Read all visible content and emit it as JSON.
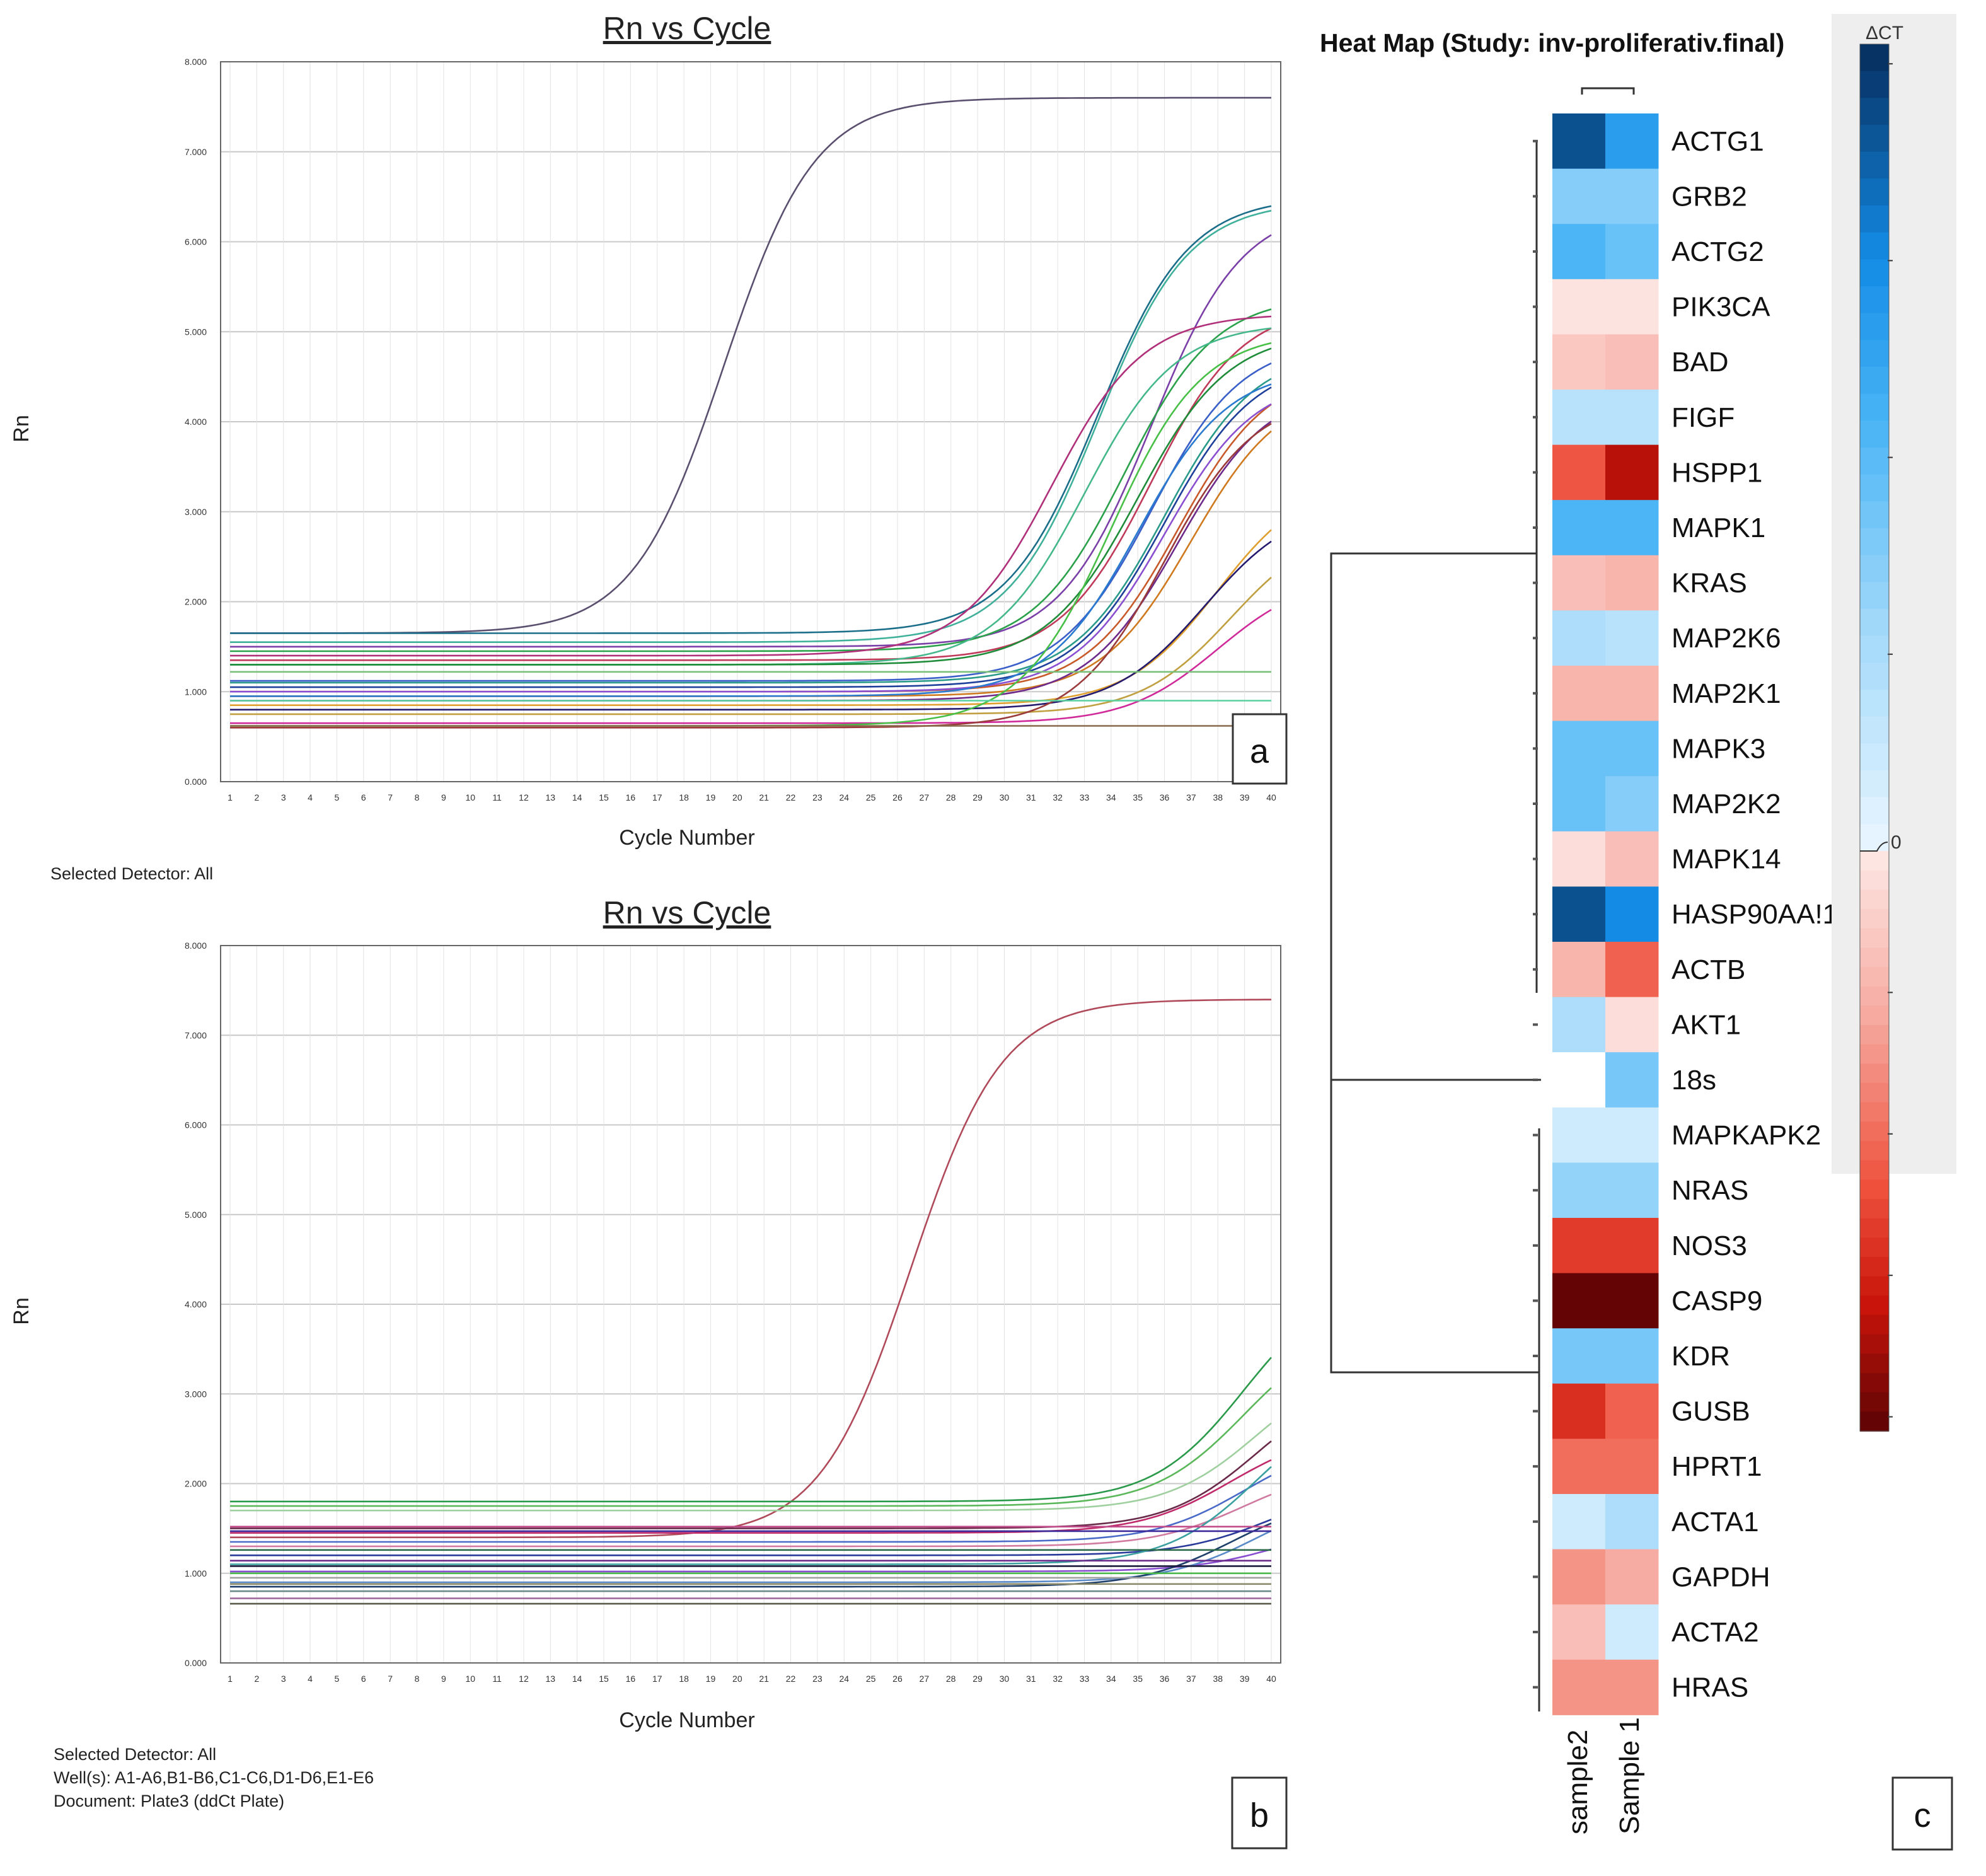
{
  "chart_data": [
    {
      "panel": "a",
      "type": "line",
      "title": "Rn vs Cycle",
      "xlabel": "Cycle Number",
      "ylabel": "Rn",
      "xlim": [
        1,
        40
      ],
      "ylim": [
        0,
        8
      ],
      "x_ticks": [
        "1",
        "2",
        "3",
        "4",
        "5",
        "6",
        "7",
        "8",
        "9",
        "10",
        "11",
        "12",
        "13",
        "14",
        "15",
        "16",
        "17",
        "18",
        "19",
        "20",
        "21",
        "22",
        "23",
        "24",
        "25",
        "26",
        "27",
        "28",
        "29",
        "30",
        "31",
        "32",
        "33",
        "34",
        "35",
        "36",
        "37",
        "38",
        "39",
        "40"
      ],
      "y_ticks": [
        "0.000",
        "1.000",
        "2.000",
        "3.000",
        "4.000",
        "5.000",
        "6.000",
        "7.000",
        "8.000"
      ],
      "grid": true,
      "footer": [
        "Selected Detector: All"
      ],
      "series": [
        {
          "base": 1.65,
          "plateau": 7.6,
          "ct": 19.5,
          "color": "#5a4f6e"
        },
        {
          "base": 1.65,
          "plateau": 6.5,
          "ct": 33.5,
          "color": "#1b6e8a"
        },
        {
          "base": 1.55,
          "plateau": 6.45,
          "ct": 33.5,
          "color": "#3fb09a"
        },
        {
          "base": 1.5,
          "plateau": 6.4,
          "ct": 35.5,
          "color": "#7b3fa8"
        },
        {
          "base": 1.45,
          "plateau": 5.4,
          "ct": 34.5,
          "color": "#2aa14a"
        },
        {
          "base": 1.4,
          "plateau": 5.2,
          "ct": 31.8,
          "color": "#b0307a"
        },
        {
          "base": 1.35,
          "plateau": 5.3,
          "ct": 35.5,
          "color": "#c03a5a"
        },
        {
          "base": 1.3,
          "plateau": 5.1,
          "ct": 33,
          "color": "#44b88a"
        },
        {
          "base": 1.3,
          "plateau": 5.0,
          "ct": 35,
          "color": "#1f8c3a"
        },
        {
          "base": 1.12,
          "plateau": 4.9,
          "ct": 35.5,
          "color": "#3a5fc8"
        },
        {
          "base": 1.1,
          "plateau": 4.8,
          "ct": 36,
          "color": "#2a9a8a"
        },
        {
          "base": 1.05,
          "plateau": 4.7,
          "ct": 36,
          "color": "#1e3f9a"
        },
        {
          "base": 1.0,
          "plateau": 4.6,
          "ct": 36.5,
          "color": "#c85a2a"
        },
        {
          "base": 1.0,
          "plateau": 4.5,
          "ct": 36,
          "color": "#8a4fd0"
        },
        {
          "base": 0.95,
          "plateau": 4.4,
          "ct": 37,
          "color": "#d07a20"
        },
        {
          "base": 0.95,
          "plateau": 4.6,
          "ct": 35,
          "color": "#2a7acf"
        },
        {
          "base": 0.9,
          "plateau": 4.4,
          "ct": 36.5,
          "color": "#6e2a8a"
        },
        {
          "base": 0.85,
          "plateau": 3.4,
          "ct": 38,
          "color": "#e0a030"
        },
        {
          "base": 0.8,
          "plateau": 3.1,
          "ct": 37.5,
          "color": "#241a6e"
        },
        {
          "base": 0.75,
          "plateau": 2.9,
          "ct": 38.5,
          "color": "#c0a040"
        },
        {
          "base": 0.65,
          "plateau": 2.3,
          "ct": 38,
          "color": "#d02a9a"
        },
        {
          "base": 0.62,
          "plateau": 5.0,
          "ct": 34,
          "color": "#48c048"
        },
        {
          "base": 0.6,
          "plateau": 4.3,
          "ct": 36,
          "color": "#9a3a3a"
        },
        {
          "base": 1.22,
          "plateau": 1.22,
          "ct": 60,
          "color": "#7ac07a"
        },
        {
          "base": 0.9,
          "plateau": 0.9,
          "ct": 60,
          "color": "#5ad0a0"
        },
        {
          "base": 0.62,
          "plateau": 0.62,
          "ct": 60,
          "color": "#8a6a4a"
        }
      ]
    },
    {
      "panel": "b",
      "type": "line",
      "title": "Rn vs Cycle",
      "xlabel": "Cycle Number",
      "ylabel": "Rn",
      "xlim": [
        1,
        40
      ],
      "ylim": [
        0,
        8
      ],
      "x_ticks": [
        "1",
        "2",
        "3",
        "4",
        "5",
        "6",
        "7",
        "8",
        "9",
        "10",
        "11",
        "12",
        "13",
        "14",
        "15",
        "16",
        "17",
        "18",
        "19",
        "20",
        "21",
        "22",
        "23",
        "24",
        "25",
        "26",
        "27",
        "28",
        "29",
        "30",
        "31",
        "32",
        "33",
        "34",
        "35",
        "36",
        "37",
        "38",
        "39",
        "40"
      ],
      "y_ticks": [
        "0.000",
        "1.000",
        "2.000",
        "3.000",
        "4.000",
        "5.000",
        "6.000",
        "7.000",
        "8.000"
      ],
      "grid": true,
      "footer": [
        "Selected Detector: All",
        "Well(s): A1-A6,B1-B6,C1-C6,D1-D6,E1-E6",
        "Document: Plate3 (ddCt Plate)"
      ],
      "series": [
        {
          "base": 1.4,
          "plateau": 7.4,
          "ct": 26.5,
          "color": "#b04a5a"
        },
        {
          "base": 1.8,
          "plateau": 4.3,
          "ct": 39,
          "color": "#2a9a4a"
        },
        {
          "base": 1.75,
          "plateau": 3.8,
          "ct": 39,
          "color": "#5ab85a"
        },
        {
          "base": 1.7,
          "plateau": 3.4,
          "ct": 39.5,
          "color": "#a0d0a0"
        },
        {
          "base": 1.5,
          "plateau": 3.2,
          "ct": 39.5,
          "color": "#6a2a4a"
        },
        {
          "base": 1.45,
          "plateau": 2.6,
          "ct": 38.5,
          "color": "#c02a6a"
        },
        {
          "base": 1.35,
          "plateau": 2.5,
          "ct": 39,
          "color": "#4a6ac8"
        },
        {
          "base": 1.3,
          "plateau": 2.2,
          "ct": 39,
          "color": "#d07aa0"
        },
        {
          "base": 1.2,
          "plateau": 2.0,
          "ct": 40,
          "color": "#2a3a9a"
        },
        {
          "base": 1.1,
          "plateau": 3.0,
          "ct": 39.5,
          "color": "#3aa0a0"
        },
        {
          "base": 1.02,
          "plateau": 1.6,
          "ct": 40.5,
          "color": "#8a4fd0"
        },
        {
          "base": 0.9,
          "plateau": 1.9,
          "ct": 39.5,
          "color": "#5a8ac8"
        },
        {
          "base": 0.85,
          "plateau": 1.85,
          "ct": 38.5,
          "color": "#1e3f6a"
        },
        {
          "base": 1.52,
          "plateau": 1.52,
          "ct": 60,
          "color": "#c04a8a"
        },
        {
          "base": 1.47,
          "plateau": 1.47,
          "ct": 60,
          "color": "#3a2a9a"
        },
        {
          "base": 1.26,
          "plateau": 1.26,
          "ct": 60,
          "color": "#2a6a4a"
        },
        {
          "base": 1.14,
          "plateau": 1.14,
          "ct": 60,
          "color": "#6a2a8a"
        },
        {
          "base": 1.08,
          "plateau": 1.08,
          "ct": 60,
          "color": "#1a1a3a"
        },
        {
          "base": 1.0,
          "plateau": 1.0,
          "ct": 60,
          "color": "#4ab84a"
        },
        {
          "base": 0.95,
          "plateau": 0.95,
          "ct": 60,
          "color": "#a0a0a0"
        },
        {
          "base": 0.88,
          "plateau": 0.88,
          "ct": 60,
          "color": "#8a8a6a"
        },
        {
          "base": 0.8,
          "plateau": 0.8,
          "ct": 60,
          "color": "#6a8a8a"
        },
        {
          "base": 0.72,
          "plateau": 0.72,
          "ct": 60,
          "color": "#a06aa0"
        },
        {
          "base": 0.66,
          "plateau": 0.66,
          "ct": 60,
          "color": "#5a5a4a"
        }
      ]
    },
    {
      "panel": "c",
      "type": "heatmap",
      "title": "Heat Map (Study: inv-proliferativ.final)",
      "colorbar_label": "ΔCT",
      "colorbar_zero_label": "0",
      "columns": [
        "sample2",
        "Sample 1"
      ],
      "rows": [
        "ACTG1",
        "GRB2",
        "ACTG2",
        "PIK3CA",
        "BAD",
        "FIGF",
        "HSPP1",
        "MAPK1",
        "KRAS",
        "MAP2K6",
        "MAP2K1",
        "MAPK3",
        "MAP2K2",
        "MAPK14",
        "HASP90AA!1",
        "ACTB",
        "AKT1",
        "18s",
        "MAPKAPK2",
        "NRAS",
        "NOS3",
        "CASP9",
        "KDR",
        "GUSB",
        "HPRT1",
        "ACTA1",
        "GAPDH",
        "ACTA2",
        "HRAS"
      ],
      "values": [
        [
          11,
          8
        ],
        [
          4.5,
          4.5
        ],
        [
          6.5,
          5.5
        ],
        [
          -0.5,
          -0.5
        ],
        [
          -2,
          -2.5
        ],
        [
          2.5,
          2.5
        ],
        [
          -7,
          -10
        ],
        [
          6.5,
          6.5
        ],
        [
          -2.5,
          -3
        ],
        [
          3,
          2.5
        ],
        [
          -3,
          -3
        ],
        [
          5.5,
          5.5
        ],
        [
          5.5,
          4.5
        ],
        [
          -0.8,
          -2.5
        ],
        [
          11,
          9
        ],
        [
          -3,
          -6.5
        ],
        [
          3,
          -0.8
        ],
        [
          null,
          5
        ],
        [
          1.5,
          1.5
        ],
        [
          4,
          4
        ],
        [
          -8,
          -8
        ],
        [
          -12,
          -12
        ],
        [
          5,
          5
        ],
        [
          -8.5,
          -6.5
        ],
        [
          -6,
          -6
        ],
        [
          1.5,
          3
        ],
        [
          -4.5,
          -3.5
        ],
        [
          -2.5,
          1.5
        ],
        [
          -4.5,
          -4.5
        ]
      ],
      "range": [
        -12,
        12
      ]
    }
  ],
  "panel_labels": {
    "a": "a",
    "b": "b",
    "c": "c"
  },
  "colors": {
    "grid": "#c8c8c8",
    "frame": "#666666",
    "colorbar_bg": "#eeeeee"
  }
}
